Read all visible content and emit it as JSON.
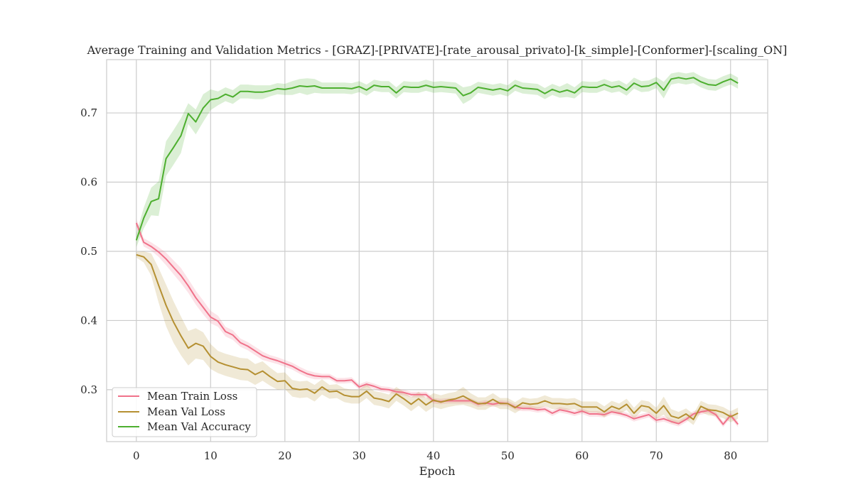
{
  "chart_data": {
    "type": "line",
    "title": "Average Training and Validation Metrics - [GRAZ]-[PRIVATE]-[rate_arousal_privato]-[k_simple]-[Conformer]-[scaling_ON]",
    "xlabel": "Epoch",
    "ylabel": "",
    "xlim": [
      -4,
      85
    ],
    "ylim": [
      0.225,
      0.777
    ],
    "xticks": [
      0,
      10,
      20,
      30,
      40,
      50,
      60,
      70,
      80
    ],
    "yticks": [
      0.3,
      0.4,
      0.5,
      0.6,
      0.7
    ],
    "ytick_labels": [
      "0.3",
      "0.4",
      "0.5",
      "0.6",
      "0.7"
    ],
    "grid": true,
    "legend_position": "lower-left",
    "x": [
      0,
      1,
      2,
      3,
      4,
      5,
      6,
      7,
      8,
      9,
      10,
      11,
      12,
      13,
      14,
      15,
      16,
      17,
      18,
      19,
      20,
      21,
      22,
      23,
      24,
      25,
      26,
      27,
      28,
      29,
      30,
      31,
      32,
      33,
      34,
      35,
      36,
      37,
      38,
      39,
      40,
      41,
      42,
      43,
      44,
      45,
      46,
      47,
      48,
      49,
      50,
      51,
      52,
      53,
      54,
      55,
      56,
      57,
      58,
      59,
      60,
      61,
      62,
      63,
      64,
      65,
      66,
      67,
      68,
      69,
      70,
      71,
      72,
      73,
      74,
      75,
      76,
      77,
      78,
      79,
      80,
      81
    ],
    "series": [
      {
        "name": "Mean Train Loss",
        "color": "#f0728a",
        "values": [
          0.541,
          0.513,
          0.507,
          0.499,
          0.489,
          0.477,
          0.465,
          0.45,
          0.433,
          0.419,
          0.405,
          0.399,
          0.384,
          0.379,
          0.368,
          0.363,
          0.356,
          0.349,
          0.345,
          0.342,
          0.338,
          0.334,
          0.328,
          0.323,
          0.32,
          0.319,
          0.319,
          0.313,
          0.313,
          0.314,
          0.304,
          0.308,
          0.305,
          0.301,
          0.3,
          0.297,
          0.296,
          0.293,
          0.293,
          0.293,
          0.284,
          0.283,
          0.284,
          0.284,
          0.284,
          0.284,
          0.279,
          0.281,
          0.279,
          0.281,
          0.28,
          0.275,
          0.273,
          0.273,
          0.271,
          0.272,
          0.266,
          0.271,
          0.269,
          0.266,
          0.269,
          0.265,
          0.265,
          0.264,
          0.268,
          0.266,
          0.263,
          0.258,
          0.261,
          0.264,
          0.256,
          0.258,
          0.254,
          0.251,
          0.257,
          0.265,
          0.268,
          0.27,
          0.264,
          0.25,
          0.263,
          0.25
        ],
        "band_width": [
          0.006,
          0.006,
          0.006,
          0.007,
          0.009,
          0.01,
          0.011,
          0.01,
          0.01,
          0.01,
          0.009,
          0.008,
          0.007,
          0.007,
          0.006,
          0.006,
          0.006,
          0.006,
          0.005,
          0.005,
          0.005,
          0.005,
          0.005,
          0.005,
          0.005,
          0.004,
          0.004,
          0.004,
          0.004,
          0.004,
          0.004,
          0.004,
          0.004,
          0.004,
          0.004,
          0.004,
          0.004,
          0.004,
          0.004,
          0.004,
          0.004,
          0.004,
          0.004,
          0.004,
          0.004,
          0.004,
          0.004,
          0.004,
          0.004,
          0.004,
          0.004,
          0.004,
          0.004,
          0.004,
          0.004,
          0.004,
          0.004,
          0.004,
          0.004,
          0.004,
          0.004,
          0.004,
          0.004,
          0.004,
          0.004,
          0.004,
          0.004,
          0.004,
          0.004,
          0.004,
          0.004,
          0.004,
          0.004,
          0.004,
          0.004,
          0.004,
          0.004,
          0.004,
          0.004,
          0.004,
          0.004,
          0.004
        ]
      },
      {
        "name": "Mean Val Loss",
        "color": "#b59032",
        "values": [
          0.495,
          0.492,
          0.481,
          0.451,
          0.422,
          0.398,
          0.378,
          0.36,
          0.367,
          0.363,
          0.348,
          0.34,
          0.336,
          0.333,
          0.33,
          0.329,
          0.322,
          0.327,
          0.319,
          0.312,
          0.313,
          0.302,
          0.3,
          0.301,
          0.295,
          0.304,
          0.297,
          0.298,
          0.292,
          0.29,
          0.29,
          0.298,
          0.288,
          0.286,
          0.283,
          0.294,
          0.287,
          0.279,
          0.287,
          0.278,
          0.285,
          0.282,
          0.285,
          0.287,
          0.291,
          0.285,
          0.28,
          0.28,
          0.286,
          0.28,
          0.28,
          0.274,
          0.281,
          0.279,
          0.28,
          0.284,
          0.28,
          0.28,
          0.279,
          0.28,
          0.275,
          0.275,
          0.275,
          0.268,
          0.276,
          0.272,
          0.279,
          0.266,
          0.277,
          0.275,
          0.266,
          0.277,
          0.262,
          0.259,
          0.265,
          0.257,
          0.276,
          0.271,
          0.27,
          0.267,
          0.261,
          0.266
        ],
        "band_width": [
          0.004,
          0.008,
          0.016,
          0.025,
          0.03,
          0.03,
          0.028,
          0.025,
          0.022,
          0.02,
          0.018,
          0.016,
          0.016,
          0.016,
          0.016,
          0.016,
          0.015,
          0.014,
          0.013,
          0.012,
          0.012,
          0.012,
          0.012,
          0.012,
          0.012,
          0.011,
          0.01,
          0.01,
          0.01,
          0.01,
          0.01,
          0.01,
          0.01,
          0.01,
          0.01,
          0.01,
          0.01,
          0.01,
          0.01,
          0.01,
          0.01,
          0.01,
          0.01,
          0.01,
          0.013,
          0.01,
          0.009,
          0.009,
          0.009,
          0.008,
          0.008,
          0.008,
          0.008,
          0.008,
          0.008,
          0.008,
          0.008,
          0.008,
          0.008,
          0.008,
          0.008,
          0.008,
          0.008,
          0.008,
          0.008,
          0.008,
          0.008,
          0.008,
          0.008,
          0.008,
          0.008,
          0.013,
          0.01,
          0.009,
          0.008,
          0.008,
          0.008,
          0.008,
          0.008,
          0.008,
          0.008,
          0.008
        ]
      },
      {
        "name": "Mean Val Accuracy",
        "color": "#4daf2f",
        "values": [
          0.516,
          0.548,
          0.572,
          0.576,
          0.634,
          0.65,
          0.667,
          0.699,
          0.687,
          0.707,
          0.719,
          0.721,
          0.727,
          0.723,
          0.731,
          0.731,
          0.73,
          0.73,
          0.732,
          0.735,
          0.734,
          0.736,
          0.739,
          0.738,
          0.739,
          0.736,
          0.736,
          0.736,
          0.736,
          0.735,
          0.738,
          0.733,
          0.74,
          0.738,
          0.738,
          0.729,
          0.738,
          0.737,
          0.737,
          0.74,
          0.737,
          0.738,
          0.737,
          0.736,
          0.725,
          0.729,
          0.737,
          0.735,
          0.733,
          0.735,
          0.732,
          0.74,
          0.736,
          0.735,
          0.734,
          0.728,
          0.734,
          0.73,
          0.733,
          0.729,
          0.738,
          0.737,
          0.737,
          0.741,
          0.737,
          0.739,
          0.733,
          0.743,
          0.738,
          0.739,
          0.744,
          0.733,
          0.749,
          0.751,
          0.749,
          0.751,
          0.745,
          0.741,
          0.74,
          0.745,
          0.749,
          0.743
        ],
        "band_width": [
          0.01,
          0.015,
          0.02,
          0.025,
          0.025,
          0.025,
          0.025,
          0.015,
          0.018,
          0.02,
          0.015,
          0.01,
          0.01,
          0.01,
          0.01,
          0.01,
          0.01,
          0.01,
          0.008,
          0.008,
          0.008,
          0.01,
          0.01,
          0.012,
          0.01,
          0.008,
          0.008,
          0.008,
          0.008,
          0.008,
          0.008,
          0.008,
          0.008,
          0.008,
          0.008,
          0.008,
          0.008,
          0.008,
          0.008,
          0.008,
          0.008,
          0.008,
          0.008,
          0.008,
          0.012,
          0.01,
          0.008,
          0.008,
          0.008,
          0.008,
          0.008,
          0.008,
          0.008,
          0.008,
          0.008,
          0.008,
          0.008,
          0.008,
          0.01,
          0.008,
          0.008,
          0.008,
          0.008,
          0.008,
          0.008,
          0.008,
          0.008,
          0.008,
          0.008,
          0.008,
          0.008,
          0.012,
          0.008,
          0.008,
          0.008,
          0.008,
          0.008,
          0.008,
          0.008,
          0.008,
          0.008,
          0.008
        ]
      }
    ]
  }
}
